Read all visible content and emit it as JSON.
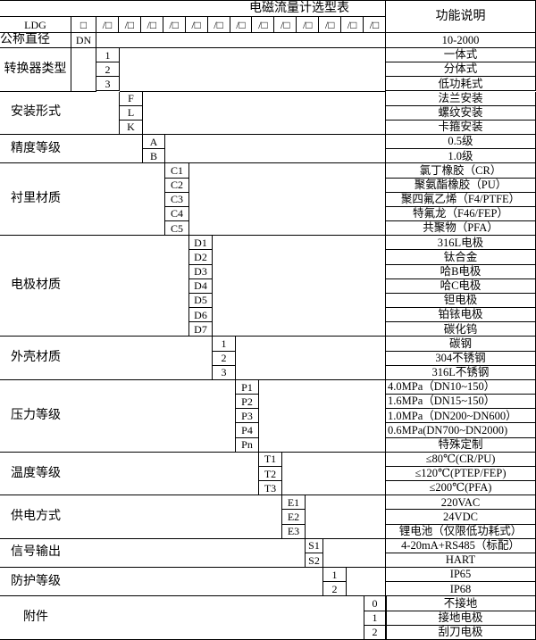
{
  "title": "电磁流量计选型表",
  "description_header": "功能说明",
  "header_row": {
    "model": "LDG",
    "first_box": "□",
    "slot_box": "/□",
    "slot_count": 13
  },
  "dn_row": {
    "label": "公称直径",
    "code": "DN",
    "description": "10-2000"
  },
  "groups": [
    {
      "label": "转换器类型",
      "col": 0,
      "options": [
        {
          "code": "1",
          "desc": "一体式"
        },
        {
          "code": "2",
          "desc": "分体式"
        },
        {
          "code": "3",
          "desc": "低功耗式"
        }
      ]
    },
    {
      "label": "安装形式",
      "col": 1,
      "options": [
        {
          "code": "F",
          "desc": "法兰安装"
        },
        {
          "code": "L",
          "desc": "螺纹安装"
        },
        {
          "code": "K",
          "desc": "卡箍安装"
        }
      ]
    },
    {
      "label": "精度等级",
      "col": 2,
      "options": [
        {
          "code": "A",
          "desc": "0.5级"
        },
        {
          "code": "B",
          "desc": "1.0级"
        }
      ]
    },
    {
      "label": "衬里材质",
      "col": 3,
      "options": [
        {
          "code": "C1",
          "desc": "氯丁橡胶（CR）"
        },
        {
          "code": "C2",
          "desc": "聚氨酯橡胶（PU）"
        },
        {
          "code": "C3",
          "desc": "聚四氟乙烯（F4/PTFE）"
        },
        {
          "code": "C4",
          "desc": "特氟龙（F46/FEP）"
        },
        {
          "code": "C5",
          "desc": "共聚物（PFA）"
        }
      ]
    },
    {
      "label": "电极材质",
      "col": 4,
      "options": [
        {
          "code": "D1",
          "desc": "316L电极"
        },
        {
          "code": "D2",
          "desc": "钛合金"
        },
        {
          "code": "D3",
          "desc": "哈B电极"
        },
        {
          "code": "D4",
          "desc": "哈C电极"
        },
        {
          "code": "D5",
          "desc": "钽电极"
        },
        {
          "code": "D6",
          "desc": "铂铱电极"
        },
        {
          "code": "D7",
          "desc": "碳化钨"
        }
      ]
    },
    {
      "label": "外壳材质",
      "col": 5,
      "options": [
        {
          "code": "1",
          "desc": "碳钢"
        },
        {
          "code": "2",
          "desc": "304不锈钢"
        },
        {
          "code": "3",
          "desc": "316L不锈钢"
        }
      ]
    },
    {
      "label": "压力等级",
      "col": 6,
      "options": [
        {
          "code": "P1",
          "desc": "4.0MPa（DN10~150）",
          "left": true
        },
        {
          "code": "P2",
          "desc": "1.6MPa（DN15~150）",
          "left": true
        },
        {
          "code": "P3",
          "desc": "1.0MPa（DN200~DN600）",
          "left": true
        },
        {
          "code": "P4",
          "desc": "0.6MPa(DN700~DN2000)",
          "left": true
        },
        {
          "code": "Pn",
          "desc": "特殊定制"
        }
      ]
    },
    {
      "label": "温度等级",
      "col": 7,
      "options": [
        {
          "code": "T1",
          "desc": "≤80℃(CR/PU)"
        },
        {
          "code": "T2",
          "desc": "≤120℃(PTEP/FEP)"
        },
        {
          "code": "T3",
          "desc": "≤200℃(PFA)"
        }
      ]
    },
    {
      "label": "供电方式",
      "col": 8,
      "options": [
        {
          "code": "E1",
          "desc": "220VAC"
        },
        {
          "code": "E2",
          "desc": "24VDC"
        },
        {
          "code": "E3",
          "desc": "锂电池（仅限低功耗式）"
        }
      ]
    },
    {
      "label": "信号输出",
      "col": 9,
      "options": [
        {
          "code": "S1",
          "desc": "4-20mA+RS485（标配）"
        },
        {
          "code": "S2",
          "desc": "HART"
        }
      ]
    },
    {
      "label": "防护等级",
      "col": 10,
      "options": [
        {
          "code": "1",
          "desc": "IP65"
        },
        {
          "code": "2",
          "desc": "IP68"
        }
      ]
    },
    {
      "label": "附件",
      "col": 12,
      "options": [
        {
          "code": "0",
          "desc": "不接地"
        },
        {
          "code": "1",
          "desc": "接地电极"
        },
        {
          "code": "2",
          "desc": "刮刀电极"
        }
      ]
    }
  ]
}
